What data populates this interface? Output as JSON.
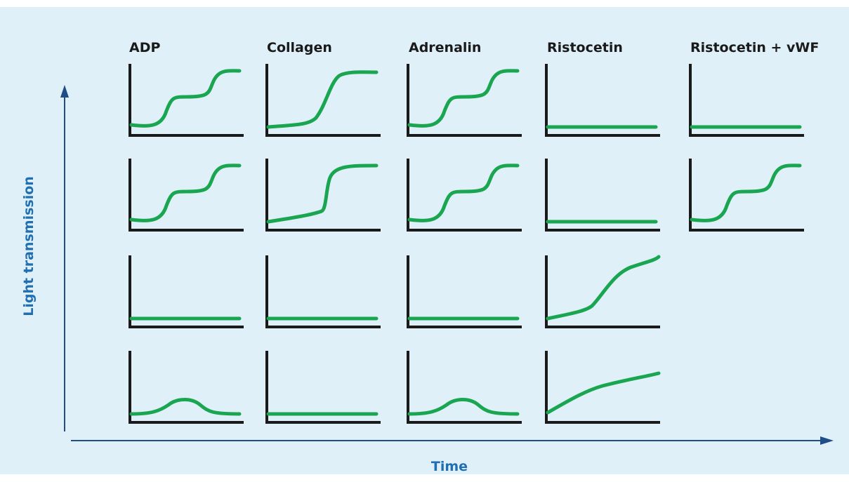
{
  "figure": {
    "background_color": "#dff0f9",
    "trace_color": "#1aa651",
    "axis_color": "#1f4e86",
    "label_color": "#1f6fb2",
    "x_axis_label": "Time",
    "y_axis_label": "Light transmission",
    "columns": [
      {
        "title": "ADP"
      },
      {
        "title": "Collagen"
      },
      {
        "title": "Adrenalin"
      },
      {
        "title": "Ristocetin"
      },
      {
        "title": "Ristocetin + vWF"
      }
    ],
    "panels": [
      {
        "row": 1,
        "col": 1,
        "curve": "biphasic"
      },
      {
        "row": 1,
        "col": 2,
        "curve": "sharp-rise"
      },
      {
        "row": 1,
        "col": 3,
        "curve": "biphasic"
      },
      {
        "row": 1,
        "col": 4,
        "curve": "flat"
      },
      {
        "row": 1,
        "col": 5,
        "curve": "flat"
      },
      {
        "row": 2,
        "col": 1,
        "curve": "biphasic"
      },
      {
        "row": 2,
        "col": 2,
        "curve": "delayed-rise"
      },
      {
        "row": 2,
        "col": 3,
        "curve": "biphasic"
      },
      {
        "row": 2,
        "col": 4,
        "curve": "flat"
      },
      {
        "row": 2,
        "col": 5,
        "curve": "biphasic"
      },
      {
        "row": 3,
        "col": 1,
        "curve": "flat"
      },
      {
        "row": 3,
        "col": 2,
        "curve": "flat"
      },
      {
        "row": 3,
        "col": 3,
        "curve": "flat"
      },
      {
        "row": 3,
        "col": 4,
        "curve": "gradual-rise"
      },
      {
        "row": 4,
        "col": 1,
        "curve": "transient-bump"
      },
      {
        "row": 4,
        "col": 2,
        "curve": "flat"
      },
      {
        "row": 4,
        "col": 3,
        "curve": "transient-bump"
      },
      {
        "row": 4,
        "col": 4,
        "curve": "steady-rise"
      }
    ]
  }
}
